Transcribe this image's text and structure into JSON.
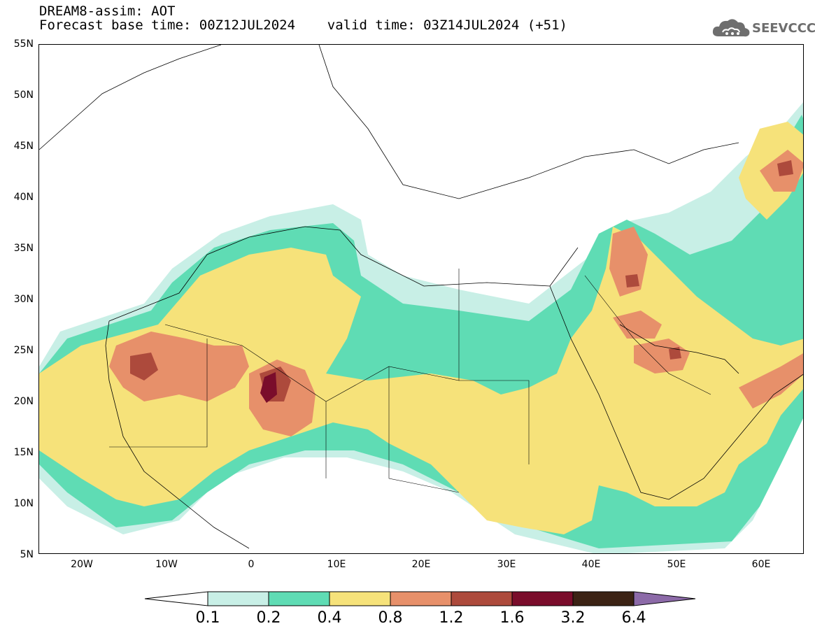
{
  "header": {
    "line1": "DREAM8-assim: AOT",
    "line2": "Forecast base time: 00Z12JUL2024    valid time: 03Z14JUL2024 (+51)"
  },
  "logo": {
    "text": "SEEVCCC",
    "icon": "cloud-icon"
  },
  "axes": {
    "lat_labels": [
      "55N",
      "50N",
      "45N",
      "40N",
      "35N",
      "30N",
      "25N",
      "20N",
      "15N",
      "10N",
      "5N"
    ],
    "lon_labels": [
      "20W",
      "10W",
      "0",
      "10E",
      "20E",
      "30E",
      "40E",
      "50E",
      "60E"
    ]
  },
  "colorbar": {
    "labels": [
      "0.1",
      "0.2",
      "0.4",
      "0.8",
      "1.2",
      "1.6",
      "3.2",
      "6.4"
    ],
    "colors": [
      "#ffffff",
      "#c8efe6",
      "#5fdcb4",
      "#f6e27a",
      "#e7906a",
      "#ad4a3c",
      "#7a0d2b",
      "#3c2315",
      "#8c6aa8"
    ]
  },
  "chart_data": {
    "type": "heatmap",
    "title": "DREAM8-assim: AOT",
    "variable": "AOT",
    "lat_range": [
      5,
      55
    ],
    "lon_range": [
      -25,
      65
    ],
    "levels": [
      0.1,
      0.2,
      0.4,
      0.8,
      1.2,
      1.6,
      3.2,
      6.4
    ]
  }
}
